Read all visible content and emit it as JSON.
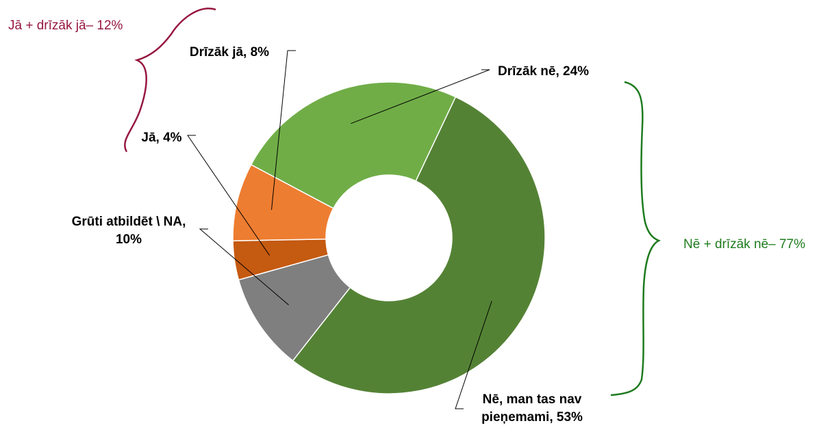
{
  "chart_data": {
    "type": "pie",
    "style": "donut",
    "title": "",
    "slices": [
      {
        "label_lines": [
          "Drīzāk nē, 24%"
        ],
        "value": 24,
        "color": "#70AD47"
      },
      {
        "label_lines": [
          "Nē, man tas nav",
          "pieņemami, 53%"
        ],
        "value": 53,
        "color": "#548235"
      },
      {
        "label_lines": [
          "Grūti atbildēt \\ NA,",
          "10%"
        ],
        "value": 10,
        "color": "#7F7F7F"
      },
      {
        "label_lines": [
          "Jā, 4%"
        ],
        "value": 4,
        "color": "#C55A11"
      },
      {
        "label_lines": [
          "Drīzāk jā, 8%"
        ],
        "value": 8,
        "color": "#ED7D31"
      }
    ],
    "groups": [
      {
        "text": "Jā + drīzāk jā– 12%",
        "color": "#96173F"
      },
      {
        "text": "Nē + drīzāk nē– 77%",
        "color": "#1E7B1E"
      }
    ]
  }
}
